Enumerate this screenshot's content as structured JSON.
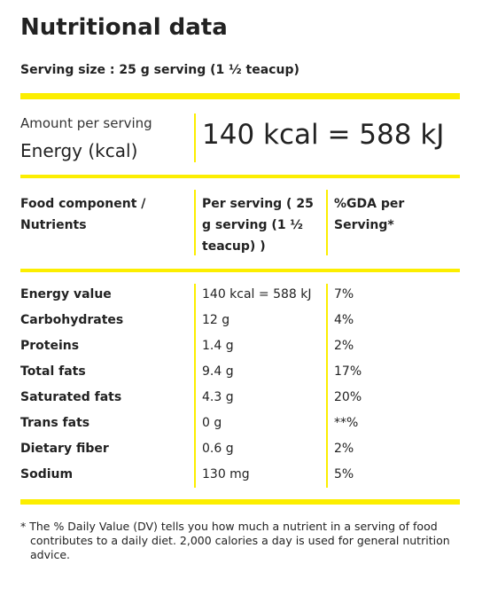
{
  "header": {
    "title": "Nutritional data",
    "serving_size": "Serving size : 25 g serving (1 ½ teacup)"
  },
  "energy": {
    "caption": "Amount per serving",
    "label": "Energy (kcal)",
    "value": "140 kcal = 588 kJ"
  },
  "table": {
    "columns": [
      "Food component / Nutrients",
      "Per serving ( 25 g serving (1 ½ teacup) )",
      "%GDA per Serving*"
    ],
    "rows": [
      [
        "Energy value",
        "140 kcal = 588 kJ",
        "7%"
      ],
      [
        "Carbohydrates",
        "12 g",
        "4%"
      ],
      [
        "Proteins",
        "1.4 g",
        "2%"
      ],
      [
        "Total fats",
        "9.4 g",
        "17%"
      ],
      [
        "Saturated fats",
        "4.3 g",
        "20%"
      ],
      [
        "Trans fats",
        "0 g",
        "**%"
      ],
      [
        "Dietary fiber",
        "0.6 g",
        "2%"
      ],
      [
        "Sodium",
        "130 mg",
        "5%"
      ]
    ]
  },
  "footnote": "* The % Daily Value (DV) tells you how much a nutrient in a serving of food contributes to a daily diet. 2,000 calories a day is used for general nutrition advice."
}
